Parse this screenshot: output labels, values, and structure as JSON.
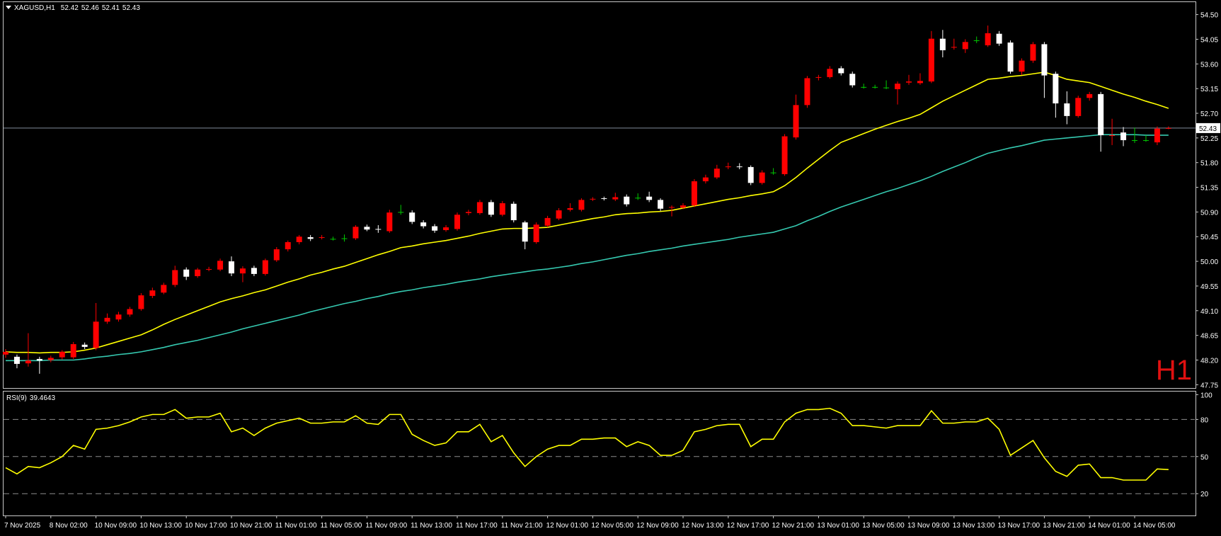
{
  "chart_data": {
    "type": "candlestick",
    "symbol": "XAGUSD,H1",
    "timeframe_label": "H1",
    "categories": [
      "7 Nov 2025",
      null,
      null,
      null,
      "8 Nov 02:00",
      null,
      null,
      null,
      "10 Nov 09:00",
      null,
      null,
      null,
      "10 Nov 13:00",
      null,
      null,
      null,
      "10 Nov 17:00",
      null,
      null,
      null,
      "10 Nov 21:00",
      null,
      null,
      null,
      "11 Nov 01:00",
      null,
      null,
      null,
      "11 Nov 05:00",
      null,
      null,
      null,
      "11 Nov 09:00",
      null,
      null,
      null,
      "11 Nov 13:00",
      null,
      null,
      null,
      "11 Nov 17:00",
      null,
      null,
      null,
      "11 Nov 21:00",
      null,
      null,
      null,
      "12 Nov 01:00",
      null,
      null,
      null,
      "12 Nov 05:00",
      null,
      null,
      null,
      "12 Nov 09:00",
      null,
      null,
      null,
      "12 Nov 13:00",
      null,
      null,
      null,
      "12 Nov 17:00",
      null,
      null,
      null,
      "12 Nov 21:00",
      null,
      null,
      null,
      "13 Nov 01:00",
      null,
      null,
      null,
      "13 Nov 05:00",
      null,
      null,
      null,
      "13 Nov 09:00",
      null,
      null,
      null,
      "13 Nov 13:00",
      null,
      null,
      null,
      "13 Nov 17:00",
      null,
      null,
      null,
      "13 Nov 21:00",
      null,
      null,
      null,
      "14 Nov 01:00",
      null,
      null,
      null,
      "14 Nov 05:00",
      null,
      null,
      null
    ],
    "open": [
      48.3,
      48.26,
      48.14,
      48.22,
      48.2,
      48.25,
      48.25,
      48.48,
      48.42,
      48.9,
      48.94,
      49.03,
      49.13,
      49.37,
      49.43,
      49.57,
      49.85,
      49.73,
      49.85,
      49.85,
      50.0,
      49.78,
      49.88,
      49.77,
      50.02,
      50.22,
      50.35,
      50.44,
      50.43,
      50.41,
      50.42,
      50.42,
      50.63,
      50.59,
      50.55,
      50.9,
      50.89,
      50.71,
      50.64,
      50.57,
      50.59,
      50.88,
      50.88,
      51.08,
      50.85,
      51.05,
      50.71,
      50.35,
      50.65,
      50.78,
      50.94,
      50.94,
      51.13,
      51.15,
      51.13,
      51.18,
      51.16,
      51.18,
      51.12,
      50.98,
      50.98,
      51.02,
      51.46,
      51.53,
      51.72,
      51.73,
      51.72,
      51.43,
      51.62,
      51.59,
      52.26,
      52.85,
      53.35,
      53.36,
      53.52,
      53.42,
      53.18,
      53.18,
      53.17,
      53.14,
      53.26,
      53.25,
      53.28,
      54.06,
      53.9,
      53.87,
      54.03,
      53.94,
      54.15,
      53.99,
      53.46,
      53.66,
      53.96,
      53.42,
      52.88,
      52.65,
      52.98,
      53.05,
      52.29,
      52.35,
      52.21,
      52.21,
      52.17,
      52.42
    ],
    "high": [
      48.4,
      48.3,
      48.69,
      48.26,
      48.28,
      48.38,
      48.53,
      48.52,
      49.24,
      49.05,
      49.08,
      49.17,
      49.42,
      49.52,
      49.61,
      49.92,
      49.89,
      49.88,
      49.9,
      50.05,
      50.09,
      49.91,
      49.92,
      50.05,
      50.26,
      50.38,
      50.48,
      50.48,
      50.48,
      50.45,
      50.49,
      50.66,
      50.67,
      50.66,
      50.94,
      51.03,
      50.93,
      50.75,
      50.68,
      50.66,
      50.89,
      50.94,
      51.12,
      51.12,
      51.1,
      51.09,
      50.74,
      50.71,
      50.83,
      50.97,
      51.06,
      51.15,
      51.17,
      51.18,
      51.25,
      51.22,
      51.24,
      51.27,
      51.15,
      51.02,
      51.06,
      51.5,
      51.58,
      51.76,
      51.8,
      51.79,
      51.75,
      51.66,
      51.7,
      52.32,
      53.04,
      53.38,
      53.4,
      53.56,
      53.56,
      53.46,
      53.24,
      53.22,
      53.3,
      53.28,
      53.4,
      53.43,
      54.2,
      54.22,
      54.06,
      54.05,
      54.1,
      54.3,
      54.2,
      54.03,
      53.7,
      54.0,
      54.0,
      53.46,
      53.1,
      53.02,
      53.09,
      53.09,
      52.6,
      52.45,
      52.44,
      52.3,
      52.46,
      52.46
    ],
    "low": [
      48.24,
      48.05,
      48.08,
      47.95,
      48.16,
      48.21,
      48.22,
      48.4,
      48.38,
      48.86,
      48.9,
      48.99,
      49.1,
      49.33,
      49.4,
      49.53,
      49.66,
      49.7,
      49.82,
      49.82,
      49.73,
      49.62,
      49.73,
      49.74,
      49.99,
      50.18,
      50.31,
      50.37,
      50.4,
      50.38,
      50.36,
      50.39,
      50.55,
      50.52,
      50.52,
      50.85,
      50.68,
      50.6,
      50.52,
      50.54,
      50.56,
      50.84,
      50.85,
      50.81,
      50.82,
      50.71,
      50.22,
      50.32,
      50.62,
      50.75,
      50.91,
      50.91,
      51.1,
      51.11,
      51.1,
      51.0,
      51.12,
      51.08,
      50.92,
      50.82,
      50.95,
      50.99,
      51.42,
      51.5,
      51.68,
      51.68,
      51.39,
      51.4,
      51.58,
      51.56,
      52.22,
      52.8,
      53.3,
      53.33,
      53.39,
      53.17,
      53.15,
      53.15,
      53.14,
      52.86,
      53.22,
      53.22,
      53.25,
      53.72,
      53.86,
      53.8,
      53.98,
      53.91,
      53.93,
      53.42,
      53.4,
      53.62,
      52.98,
      52.62,
      52.5,
      52.62,
      52.93,
      52.0,
      52.12,
      52.1,
      52.16,
      52.18,
      52.12,
      52.41
    ],
    "close": [
      48.35,
      48.13,
      48.19,
      48.19,
      48.24,
      48.35,
      48.49,
      48.44,
      48.9,
      48.97,
      49.03,
      49.13,
      49.38,
      49.47,
      49.57,
      49.84,
      49.72,
      49.85,
      49.86,
      50.01,
      49.78,
      49.87,
      49.77,
      50.02,
      50.22,
      50.35,
      50.45,
      50.41,
      50.44,
      50.41,
      50.42,
      50.63,
      50.58,
      50.58,
      50.89,
      50.9,
      50.72,
      50.64,
      50.56,
      50.62,
      50.85,
      50.9,
      51.08,
      50.85,
      51.06,
      50.75,
      50.36,
      50.67,
      50.79,
      50.93,
      50.97,
      51.12,
      51.14,
      51.14,
      51.17,
      51.04,
      51.16,
      51.12,
      50.96,
      50.99,
      51.02,
      51.46,
      51.53,
      51.69,
      51.73,
      51.72,
      51.43,
      51.62,
      51.62,
      52.28,
      52.85,
      53.34,
      53.36,
      53.51,
      53.43,
      53.21,
      53.18,
      53.18,
      53.17,
      53.24,
      53.28,
      53.29,
      54.06,
      53.85,
      53.91,
      54.0,
      54.03,
      54.16,
      53.97,
      53.46,
      53.66,
      53.96,
      53.39,
      52.88,
      52.65,
      52.98,
      53.05,
      52.3,
      52.3,
      52.21,
      52.21,
      52.21,
      52.42,
      52.43
    ],
    "bull_color": "#ff0000",
    "bear_color": "#ffffff",
    "doji_color": "#00c800",
    "moving_averages": [
      {
        "color": "#ffff00",
        "values": [
          48.35,
          48.34,
          48.34,
          48.33,
          48.34,
          48.34,
          48.35,
          48.38,
          48.42,
          48.48,
          48.54,
          48.6,
          48.66,
          48.75,
          48.85,
          48.94,
          49.02,
          49.1,
          49.18,
          49.26,
          49.32,
          49.37,
          49.43,
          49.48,
          49.55,
          49.62,
          49.68,
          49.75,
          49.8,
          49.86,
          49.91,
          49.98,
          50.05,
          50.12,
          50.18,
          50.25,
          50.28,
          50.32,
          50.35,
          50.38,
          50.42,
          50.46,
          50.51,
          50.55,
          50.59,
          50.6,
          50.6,
          50.61,
          50.62,
          50.66,
          50.7,
          50.74,
          50.78,
          50.81,
          50.85,
          50.87,
          50.88,
          50.9,
          50.91,
          50.93,
          50.97,
          51.01,
          51.05,
          51.09,
          51.13,
          51.16,
          51.2,
          51.23,
          51.27,
          51.38,
          51.53,
          51.7,
          51.86,
          52.02,
          52.17,
          52.25,
          52.33,
          52.41,
          52.48,
          52.55,
          52.61,
          52.68,
          52.8,
          52.92,
          53.02,
          53.12,
          53.22,
          53.32,
          53.34,
          53.37,
          53.39,
          53.42,
          53.45,
          53.39,
          53.32,
          53.29,
          53.26,
          53.19,
          53.12,
          53.05,
          52.99,
          52.92,
          52.86,
          52.79
        ]
      },
      {
        "color": "#35c9b0",
        "values": [
          48.19,
          48.19,
          48.19,
          48.19,
          48.2,
          48.2,
          48.2,
          48.22,
          48.25,
          48.27,
          48.3,
          48.32,
          48.35,
          48.39,
          48.43,
          48.48,
          48.52,
          48.56,
          48.61,
          48.66,
          48.71,
          48.77,
          48.82,
          48.87,
          48.92,
          48.97,
          49.02,
          49.08,
          49.13,
          49.18,
          49.23,
          49.27,
          49.32,
          49.36,
          49.41,
          49.45,
          49.48,
          49.52,
          49.55,
          49.58,
          49.62,
          49.65,
          49.68,
          49.72,
          49.75,
          49.78,
          49.81,
          49.84,
          49.86,
          49.89,
          49.92,
          49.96,
          49.99,
          50.03,
          50.07,
          50.11,
          50.14,
          50.18,
          50.21,
          50.24,
          50.28,
          50.31,
          50.34,
          50.37,
          50.4,
          50.44,
          50.47,
          50.5,
          50.53,
          50.59,
          50.65,
          50.74,
          50.82,
          50.91,
          50.99,
          51.06,
          51.13,
          51.2,
          51.27,
          51.33,
          51.4,
          51.47,
          51.55,
          51.64,
          51.72,
          51.8,
          51.89,
          51.97,
          52.02,
          52.07,
          52.11,
          52.16,
          52.21,
          52.23,
          52.25,
          52.27,
          52.29,
          52.31,
          52.31,
          52.31,
          52.31,
          52.3,
          52.3,
          52.3
        ]
      }
    ],
    "ylim": [
      47.69,
      54.74
    ],
    "yticks": [
      47.75,
      {
        "value": 48.2,
        "label": "48.20"
      },
      48.65,
      {
        "value": 49.1,
        "label": "49.10"
      },
      49.55,
      {
        "value": 50,
        "label": "50.00"
      },
      50.45,
      {
        "value": 50.9,
        "label": "50.90"
      },
      51.35,
      {
        "value": 51.8,
        "label": "51.80"
      },
      52.25,
      {
        "value": 52.7,
        "label": "52.70"
      },
      53.15,
      {
        "value": 53.6,
        "label": "53.60"
      },
      54.05,
      {
        "value": 54.5,
        "label": "54.50"
      }
    ],
    "price_line_color": "#7f8c9a",
    "rsi": {
      "name": "RSI(9)",
      "color": "#ffff00",
      "values": [
        41,
        36,
        42,
        41,
        45,
        50,
        59,
        56,
        72,
        73,
        75,
        78,
        82,
        84,
        84,
        88,
        81,
        82,
        82,
        85,
        70,
        73,
        67,
        73,
        77,
        79,
        81,
        77,
        77,
        78,
        78,
        83,
        77,
        76,
        84,
        84,
        68,
        63,
        59,
        61,
        70,
        70,
        76,
        62,
        67,
        53,
        42,
        50,
        56,
        59,
        59,
        64,
        64,
        65,
        65,
        58,
        62,
        59,
        51,
        51,
        55,
        70,
        72,
        75,
        76,
        76,
        58,
        64,
        64,
        78,
        85,
        88,
        88,
        89,
        85,
        75,
        75,
        74,
        73,
        75,
        75,
        75,
        87,
        77,
        77,
        78,
        78,
        81,
        72,
        51,
        57,
        63,
        49,
        38,
        34,
        43,
        44,
        33,
        33,
        31,
        31,
        31,
        40,
        39.4643
      ],
      "ylim": [
        2.4,
        103.1
      ],
      "yticks": [
        100,
        80,
        50,
        20
      ],
      "levels": [
        20,
        50,
        80
      ]
    }
  }
}
